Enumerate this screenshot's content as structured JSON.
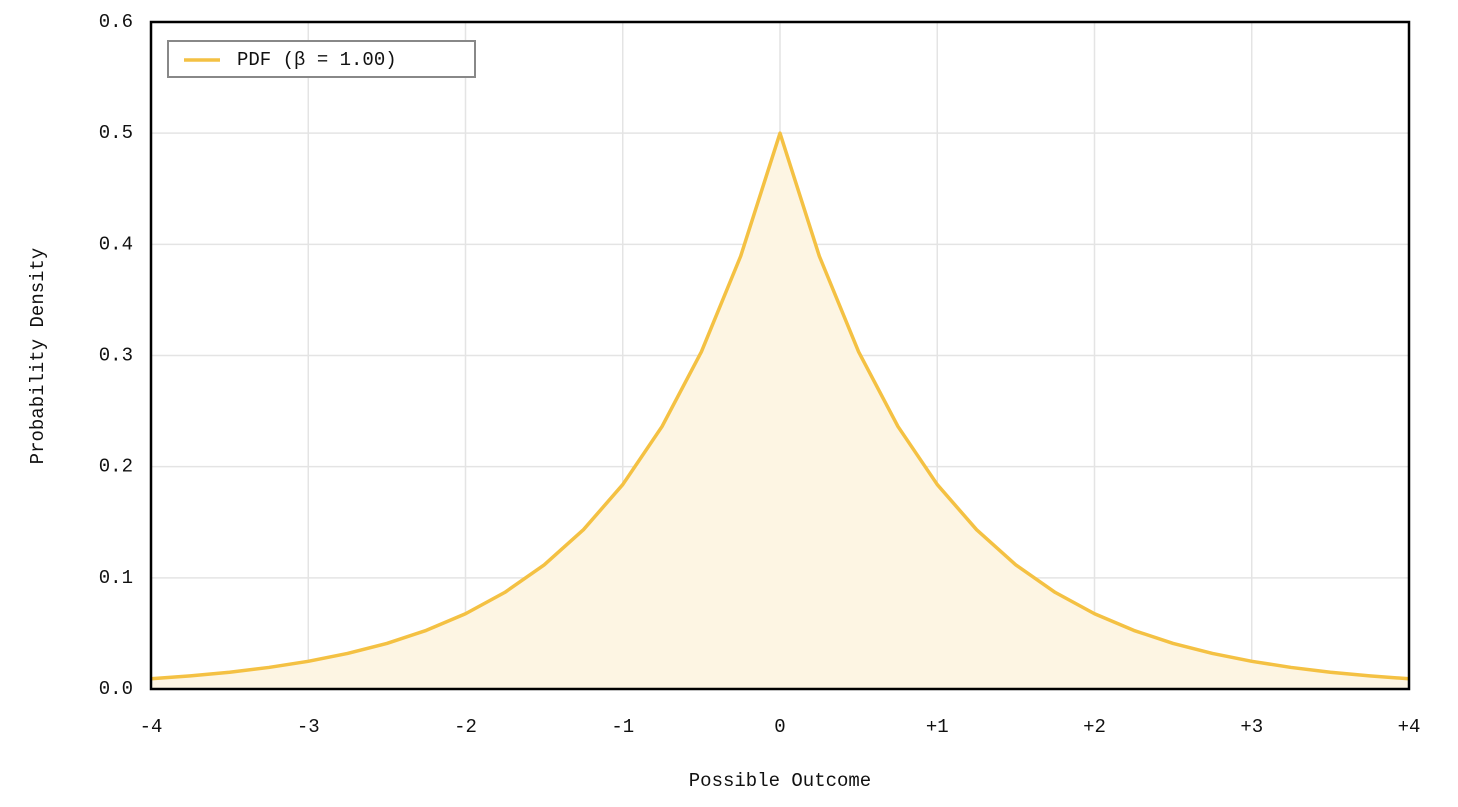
{
  "chart_data": {
    "type": "line",
    "x_label": "Possible Outcome",
    "y_label": "Probability Density",
    "x": [
      -4,
      -3.75,
      -3.5,
      -3.25,
      -3,
      -2.75,
      -2.5,
      -2.25,
      -2,
      -1.75,
      -1.5,
      -1.25,
      -1,
      -0.75,
      -0.5,
      -0.25,
      0,
      0.25,
      0.5,
      0.75,
      1,
      1.25,
      1.5,
      1.75,
      2,
      2.25,
      2.5,
      2.75,
      3,
      3.25,
      3.5,
      3.75,
      4
    ],
    "series": [
      {
        "name": "PDF (β = 1.00)",
        "color": "#f4c143",
        "fill": "#fdf5e3",
        "values": [
          0.0092,
          0.0118,
          0.0151,
          0.0194,
          0.0249,
          0.032,
          0.041,
          0.0527,
          0.0677,
          0.0869,
          0.1116,
          0.1433,
          0.1839,
          0.2362,
          0.3033,
          0.3894,
          0.5,
          0.3894,
          0.3033,
          0.2362,
          0.1839,
          0.1433,
          0.1116,
          0.0869,
          0.0677,
          0.0527,
          0.041,
          0.032,
          0.0249,
          0.0194,
          0.0151,
          0.0118,
          0.0092
        ]
      }
    ],
    "xlim": [
      -4,
      4
    ],
    "ylim": [
      0,
      0.6
    ],
    "xticks": [
      -4,
      -3,
      -2,
      -1,
      0,
      {
        "value": 1,
        "label": "+1"
      },
      {
        "value": 2,
        "label": "+2"
      },
      {
        "value": 3,
        "label": "+3"
      },
      {
        "value": 4,
        "label": "+4"
      }
    ],
    "yticks": [
      {
        "value": 0,
        "label": "0.0"
      },
      0.1,
      0.2,
      0.3,
      0.4,
      0.5,
      0.6
    ],
    "grid": true,
    "legend": "upper left"
  }
}
